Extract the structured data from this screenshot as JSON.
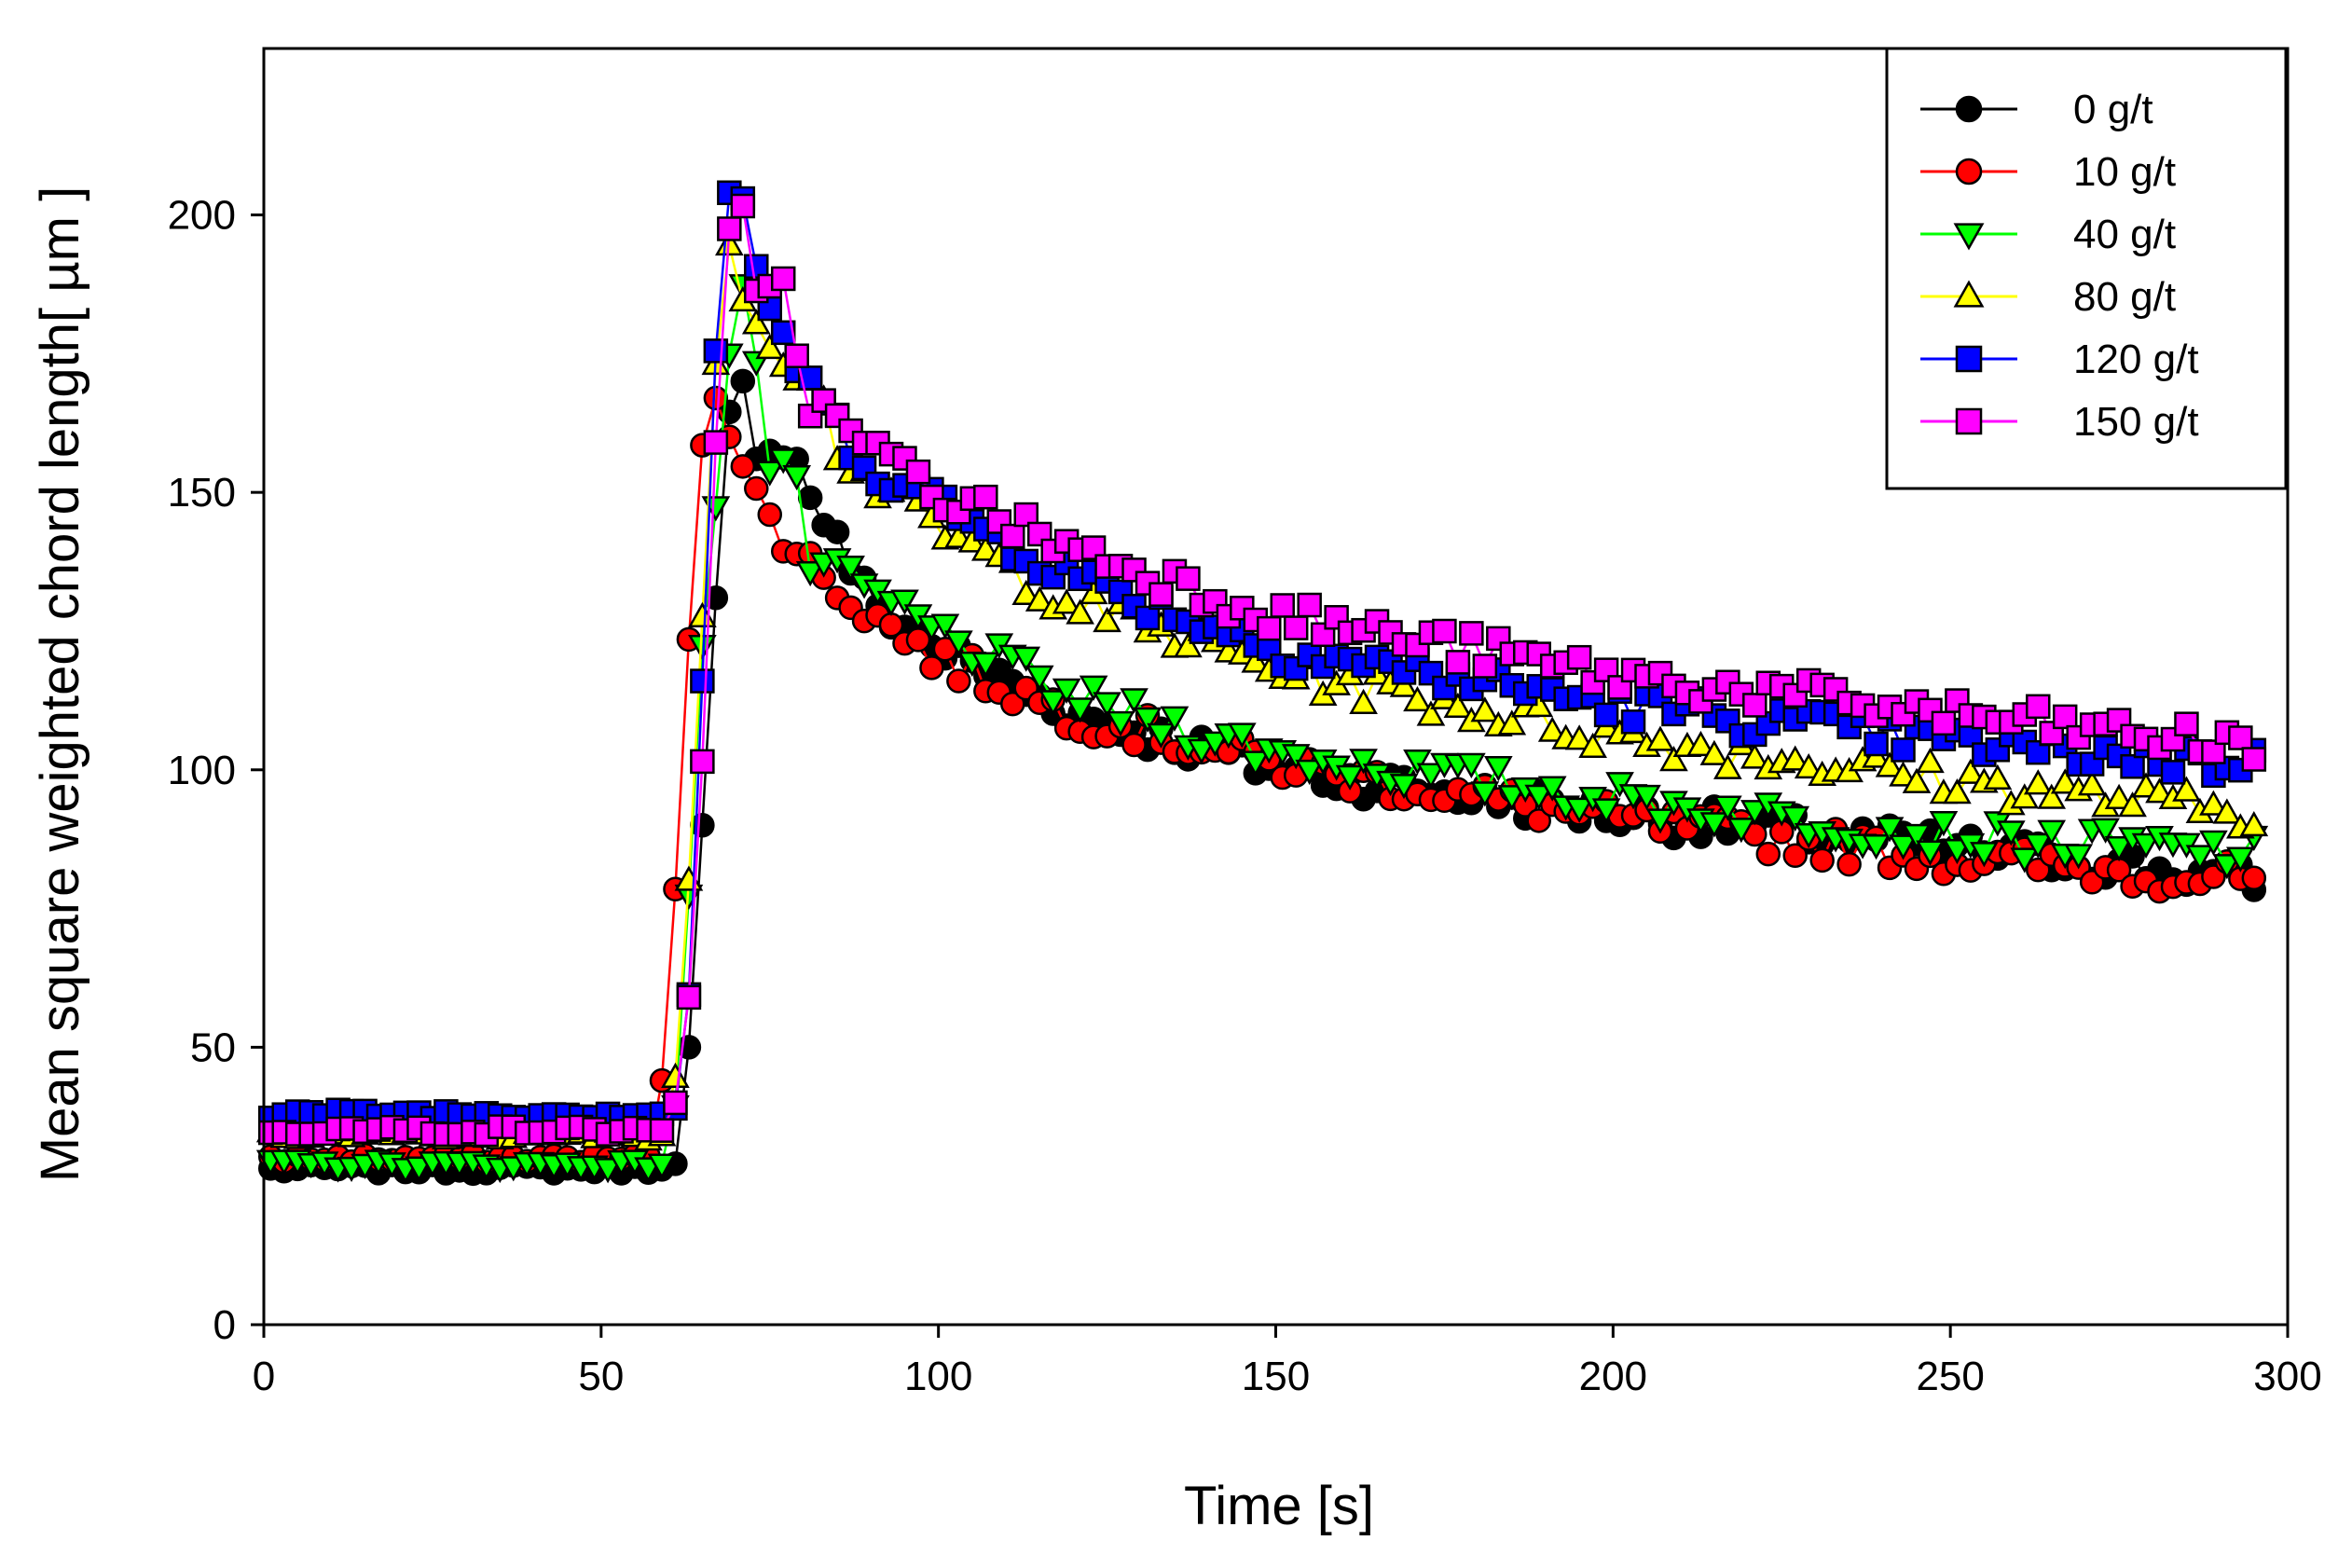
{
  "chart_data": {
    "type": "line",
    "title": "",
    "xlabel": "Time [s]",
    "ylabel": "Mean square weighted chord length[ µm ]",
    "xlim": [
      0,
      300
    ],
    "ylim": [
      0,
      230
    ],
    "xticks": [
      0,
      50,
      100,
      150,
      200,
      250,
      300
    ],
    "yticks": [
      0,
      50,
      100,
      150,
      200
    ],
    "grid": false,
    "legend_position": "top-right",
    "markers": "every 2 s",
    "series": [
      {
        "name": "0 g/t",
        "color": "#000000",
        "marker": "circle",
        "x": [
          0,
          56,
          58,
          60,
          62,
          64,
          66,
          68,
          70,
          72,
          74,
          76,
          78,
          80,
          85,
          90,
          100,
          120,
          150,
          200,
          250,
          295
        ],
        "values": [
          28,
          28,
          28,
          28,
          30,
          70,
          110,
          152,
          177,
          160,
          158,
          159,
          158,
          152,
          141,
          130,
          122,
          110,
          100,
          92,
          86,
          80
        ]
      },
      {
        "name": "10 g/t",
        "color": "#ff0000",
        "marker": "circle",
        "x": [
          0,
          56,
          58,
          60,
          62,
          64,
          66,
          68,
          70,
          72,
          74,
          76,
          78,
          80,
          85,
          90,
          100,
          120,
          150,
          200,
          250,
          295
        ],
        "values": [
          30,
          30,
          30,
          58,
          99,
          148,
          169,
          165,
          155,
          151,
          147,
          144,
          141,
          138,
          133,
          128,
          120,
          110,
          101,
          91,
          84,
          80
        ]
      },
      {
        "name": "40 g/t",
        "color": "#00ff00",
        "marker": "triangle-down",
        "x": [
          0,
          56,
          58,
          60,
          62,
          64,
          66,
          68,
          70,
          72,
          74,
          76,
          78,
          80,
          85,
          90,
          100,
          120,
          150,
          200,
          250,
          295
        ],
        "values": [
          29,
          29,
          29,
          29,
          50,
          105,
          140,
          155,
          195,
          185,
          160,
          150,
          162,
          138,
          135,
          132,
          125,
          113,
          103,
          95,
          88,
          85
        ]
      },
      {
        "name": "80 g/t",
        "color": "#ffff00",
        "marker": "triangle-up",
        "x": [
          0,
          56,
          58,
          60,
          62,
          64,
          66,
          68,
          70,
          72,
          74,
          76,
          78,
          80,
          85,
          90,
          100,
          120,
          150,
          200,
          250,
          295
        ],
        "values": [
          34,
          34,
          34,
          34,
          55,
          105,
          150,
          196,
          193,
          182,
          180,
          178,
          170,
          176,
          158,
          152,
          143,
          130,
          118,
          106,
          98,
          92
        ]
      },
      {
        "name": "120 g/t",
        "color": "#0000ff",
        "marker": "square",
        "x": [
          0,
          56,
          58,
          60,
          62,
          64,
          66,
          68,
          70,
          72,
          74,
          76,
          78,
          80,
          85,
          90,
          100,
          120,
          150,
          200,
          250,
          295
        ],
        "values": [
          38,
          38,
          38,
          38,
          40,
          79,
          153,
          198,
          210,
          190,
          188,
          182,
          175,
          170,
          162,
          155,
          148,
          135,
          122,
          112,
          105,
          101
        ]
      },
      {
        "name": "150 g/t",
        "color": "#ff00ff",
        "marker": "square",
        "x": [
          0,
          56,
          58,
          60,
          62,
          64,
          66,
          68,
          70,
          72,
          74,
          76,
          78,
          80,
          85,
          90,
          100,
          120,
          150,
          200,
          250,
          295
        ],
        "values": [
          35,
          35,
          35,
          35,
          45,
          73,
          130,
          188,
          207,
          191,
          186,
          191,
          183,
          168,
          162,
          158,
          150,
          140,
          128,
          117,
          110,
          104
        ]
      }
    ]
  }
}
